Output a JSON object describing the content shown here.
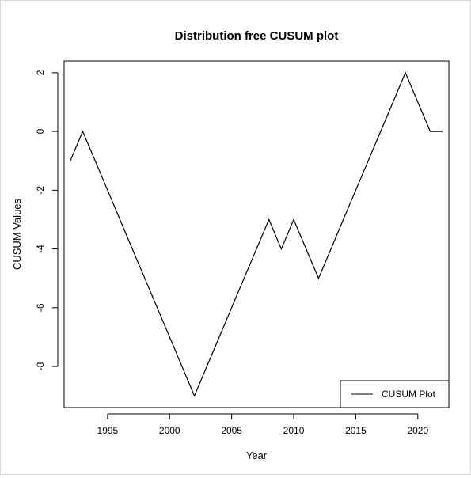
{
  "chart_data": {
    "type": "line",
    "title": "Distribution free CUSUM plot",
    "xlabel": "Year",
    "ylabel": "CUSUM Values",
    "xlim": [
      1991.5,
      2022.5
    ],
    "ylim": [
      -9.4,
      2.4
    ],
    "x_ticks": [
      1995,
      2000,
      2005,
      2010,
      2015,
      2020
    ],
    "y_ticks": [
      -8,
      -6,
      -4,
      -2,
      0,
      2
    ],
    "grid": false,
    "legend_position": "bottom-right",
    "series": [
      {
        "name": "CUSUM Plot",
        "color": "#000000",
        "x": [
          1992,
          1993,
          1994,
          1995,
          1996,
          1997,
          1998,
          1999,
          2000,
          2001,
          2002,
          2003,
          2004,
          2005,
          2006,
          2007,
          2008,
          2009,
          2010,
          2011,
          2012,
          2013,
          2014,
          2015,
          2016,
          2017,
          2018,
          2019,
          2020,
          2021,
          2022
        ],
        "y": [
          -1,
          0,
          -1,
          -2,
          -3,
          -4,
          -5,
          -6,
          -7,
          -8,
          -9,
          -8,
          -7,
          -6,
          -5,
          -4,
          -3,
          -4,
          -3,
          -4,
          -5,
          -4,
          -3,
          -2,
          -1,
          0,
          1,
          2,
          1,
          0,
          0
        ]
      }
    ]
  }
}
